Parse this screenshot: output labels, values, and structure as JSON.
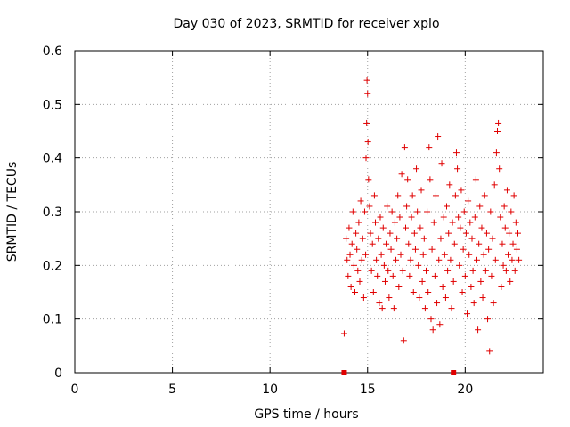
{
  "chart_data": {
    "type": "scatter",
    "title": "Day 030 of 2023, SRMTID for receiver xplo",
    "xlabel": "GPS time / hours",
    "ylabel": "SRMTID / TECUs",
    "xlim": [
      0,
      24
    ],
    "ylim": [
      0,
      0.6
    ],
    "x_ticks": [
      0,
      5,
      10,
      15,
      20
    ],
    "x_tick_labels": [
      "0",
      "5",
      "10",
      "15",
      "20"
    ],
    "y_ticks": [
      0,
      0.1,
      0.2,
      0.3,
      0.4,
      0.5,
      0.6
    ],
    "y_tick_labels": [
      "0",
      "0.1",
      "0.2",
      "0.3",
      "0.4",
      "0.5",
      "0.6"
    ],
    "grid": true,
    "marker": "+",
    "color": "#e00000",
    "series": [
      {
        "name": "SRMTID",
        "points": [
          [
            13.8,
            0.073
          ],
          [
            13.8,
            0.0
          ],
          [
            19.4,
            0.0
          ],
          [
            13.9,
            0.25
          ],
          [
            13.95,
            0.21
          ],
          [
            14.0,
            0.18
          ],
          [
            14.05,
            0.27
          ],
          [
            14.1,
            0.22
          ],
          [
            14.15,
            0.16
          ],
          [
            14.2,
            0.24
          ],
          [
            14.25,
            0.3
          ],
          [
            14.3,
            0.2
          ],
          [
            14.35,
            0.15
          ],
          [
            14.4,
            0.26
          ],
          [
            14.45,
            0.23
          ],
          [
            14.5,
            0.19
          ],
          [
            14.55,
            0.28
          ],
          [
            14.6,
            0.17
          ],
          [
            14.65,
            0.32
          ],
          [
            14.7,
            0.21
          ],
          [
            14.75,
            0.25
          ],
          [
            14.8,
            0.14
          ],
          [
            14.85,
            0.3
          ],
          [
            14.9,
            0.22
          ],
          [
            14.92,
            0.4
          ],
          [
            14.95,
            0.465
          ],
          [
            14.97,
            0.545
          ],
          [
            15.0,
            0.52
          ],
          [
            15.02,
            0.43
          ],
          [
            15.05,
            0.36
          ],
          [
            15.1,
            0.31
          ],
          [
            15.15,
            0.26
          ],
          [
            15.2,
            0.19
          ],
          [
            15.25,
            0.24
          ],
          [
            15.3,
            0.15
          ],
          [
            15.35,
            0.33
          ],
          [
            15.4,
            0.28
          ],
          [
            15.45,
            0.21
          ],
          [
            15.5,
            0.18
          ],
          [
            15.55,
            0.25
          ],
          [
            15.6,
            0.13
          ],
          [
            15.65,
            0.29
          ],
          [
            15.7,
            0.22
          ],
          [
            15.75,
            0.12
          ],
          [
            15.8,
            0.27
          ],
          [
            15.85,
            0.2
          ],
          [
            15.9,
            0.17
          ],
          [
            15.95,
            0.24
          ],
          [
            16.0,
            0.31
          ],
          [
            16.05,
            0.19
          ],
          [
            16.1,
            0.14
          ],
          [
            16.15,
            0.26
          ],
          [
            16.2,
            0.23
          ],
          [
            16.25,
            0.3
          ],
          [
            16.3,
            0.18
          ],
          [
            16.35,
            0.12
          ],
          [
            16.4,
            0.28
          ],
          [
            16.45,
            0.21
          ],
          [
            16.5,
            0.25
          ],
          [
            16.55,
            0.33
          ],
          [
            16.6,
            0.16
          ],
          [
            16.65,
            0.29
          ],
          [
            16.7,
            0.22
          ],
          [
            16.75,
            0.37
          ],
          [
            16.8,
            0.19
          ],
          [
            16.85,
            0.06
          ],
          [
            16.9,
            0.42
          ],
          [
            16.95,
            0.27
          ],
          [
            17.0,
            0.31
          ],
          [
            17.05,
            0.36
          ],
          [
            17.1,
            0.24
          ],
          [
            17.15,
            0.18
          ],
          [
            17.2,
            0.21
          ],
          [
            17.25,
            0.29
          ],
          [
            17.3,
            0.33
          ],
          [
            17.35,
            0.15
          ],
          [
            17.4,
            0.26
          ],
          [
            17.45,
            0.23
          ],
          [
            17.5,
            0.38
          ],
          [
            17.55,
            0.3
          ],
          [
            17.6,
            0.2
          ],
          [
            17.65,
            0.14
          ],
          [
            17.7,
            0.27
          ],
          [
            17.75,
            0.34
          ],
          [
            17.8,
            0.17
          ],
          [
            17.85,
            0.22
          ],
          [
            17.9,
            0.25
          ],
          [
            17.95,
            0.12
          ],
          [
            18.0,
            0.19
          ],
          [
            18.05,
            0.3
          ],
          [
            18.1,
            0.15
          ],
          [
            18.15,
            0.42
          ],
          [
            18.2,
            0.36
          ],
          [
            18.25,
            0.1
          ],
          [
            18.3,
            0.23
          ],
          [
            18.35,
            0.08
          ],
          [
            18.4,
            0.28
          ],
          [
            18.45,
            0.18
          ],
          [
            18.5,
            0.33
          ],
          [
            18.55,
            0.13
          ],
          [
            18.6,
            0.44
          ],
          [
            18.65,
            0.21
          ],
          [
            18.7,
            0.09
          ],
          [
            18.75,
            0.25
          ],
          [
            18.8,
            0.39
          ],
          [
            18.85,
            0.16
          ],
          [
            18.9,
            0.29
          ],
          [
            18.95,
            0.22
          ],
          [
            19.0,
            0.14
          ],
          [
            19.05,
            0.31
          ],
          [
            19.1,
            0.19
          ],
          [
            19.15,
            0.26
          ],
          [
            19.2,
            0.35
          ],
          [
            19.25,
            0.21
          ],
          [
            19.3,
            0.12
          ],
          [
            19.35,
            0.28
          ],
          [
            19.4,
            0.17
          ],
          [
            19.45,
            0.24
          ],
          [
            19.5,
            0.33
          ],
          [
            19.55,
            0.41
          ],
          [
            19.6,
            0.38
          ],
          [
            19.65,
            0.29
          ],
          [
            19.7,
            0.2
          ],
          [
            19.75,
            0.27
          ],
          [
            19.8,
            0.34
          ],
          [
            19.85,
            0.15
          ],
          [
            19.9,
            0.23
          ],
          [
            19.95,
            0.3
          ],
          [
            20.0,
            0.18
          ],
          [
            20.05,
            0.26
          ],
          [
            20.1,
            0.11
          ],
          [
            20.15,
            0.32
          ],
          [
            20.2,
            0.22
          ],
          [
            20.25,
            0.28
          ],
          [
            20.3,
            0.16
          ],
          [
            20.35,
            0.25
          ],
          [
            20.4,
            0.19
          ],
          [
            20.45,
            0.13
          ],
          [
            20.5,
            0.29
          ],
          [
            20.55,
            0.36
          ],
          [
            20.6,
            0.21
          ],
          [
            20.65,
            0.08
          ],
          [
            20.7,
            0.24
          ],
          [
            20.75,
            0.31
          ],
          [
            20.8,
            0.17
          ],
          [
            20.85,
            0.27
          ],
          [
            20.9,
            0.14
          ],
          [
            20.95,
            0.22
          ],
          [
            21.0,
            0.33
          ],
          [
            21.05,
            0.19
          ],
          [
            21.1,
            0.26
          ],
          [
            21.15,
            0.1
          ],
          [
            21.2,
            0.23
          ],
          [
            21.25,
            0.04
          ],
          [
            21.3,
            0.3
          ],
          [
            21.35,
            0.18
          ],
          [
            21.4,
            0.25
          ],
          [
            21.45,
            0.13
          ],
          [
            21.5,
            0.35
          ],
          [
            21.55,
            0.21
          ],
          [
            21.6,
            0.41
          ],
          [
            21.65,
            0.45
          ],
          [
            21.7,
            0.465
          ],
          [
            21.75,
            0.38
          ],
          [
            21.8,
            0.29
          ],
          [
            21.85,
            0.16
          ],
          [
            21.9,
            0.24
          ],
          [
            21.95,
            0.2
          ],
          [
            22.0,
            0.31
          ],
          [
            22.05,
            0.27
          ],
          [
            22.1,
            0.19
          ],
          [
            22.15,
            0.34
          ],
          [
            22.2,
            0.22
          ],
          [
            22.25,
            0.26
          ],
          [
            22.3,
            0.17
          ],
          [
            22.35,
            0.3
          ],
          [
            22.4,
            0.21
          ],
          [
            22.45,
            0.24
          ],
          [
            22.5,
            0.33
          ],
          [
            22.55,
            0.19
          ],
          [
            22.6,
            0.28
          ],
          [
            22.65,
            0.23
          ],
          [
            22.7,
            0.26
          ],
          [
            22.75,
            0.21
          ]
        ]
      }
    ]
  }
}
